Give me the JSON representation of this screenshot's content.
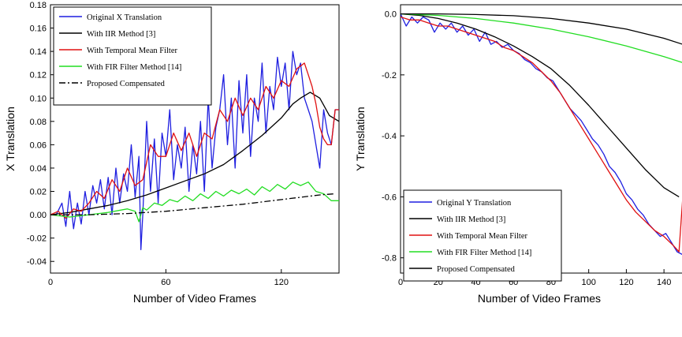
{
  "chart_data": [
    {
      "type": "line",
      "xlabel": "Number of Video Frames",
      "ylabel": "X  Translation",
      "xlim": [
        0,
        150
      ],
      "ylim": [
        -0.05,
        0.18
      ],
      "xticks": [
        0,
        60,
        120
      ],
      "yticks": [
        -0.04,
        -0.02,
        0.0,
        0.02,
        0.04,
        0.06,
        0.08,
        0.1,
        0.12,
        0.14,
        0.16,
        0.18
      ],
      "ytick_labels": [
        "-0.04",
        "-0.02",
        "0.00",
        "0.02",
        "0.04",
        "0.06",
        "0.08",
        "0.10",
        "0.12",
        "0.14",
        "0.16",
        "0.18"
      ],
      "legend_position": "top-left",
      "series": [
        {
          "name": "Original X Translation",
          "color": "#1f1fe0",
          "dash": "",
          "x": [
            0,
            3,
            6,
            8,
            10,
            12,
            14,
            16,
            18,
            20,
            22,
            24,
            26,
            28,
            30,
            32,
            34,
            36,
            38,
            40,
            42,
            44,
            46,
            47,
            48,
            50,
            52,
            54,
            56,
            58,
            60,
            62,
            64,
            66,
            68,
            70,
            72,
            74,
            76,
            78,
            80,
            82,
            84,
            86,
            88,
            90,
            92,
            94,
            96,
            98,
            100,
            102,
            104,
            106,
            108,
            110,
            112,
            114,
            116,
            118,
            120,
            122,
            124,
            126,
            128,
            130,
            132,
            134,
            136,
            138,
            140,
            142,
            144,
            146,
            148,
            150
          ],
          "y": [
            0.0,
            0.0,
            0.01,
            -0.01,
            0.02,
            -0.012,
            0.01,
            -0.008,
            0.02,
            0.0,
            0.025,
            0.01,
            0.03,
            0.005,
            0.032,
            0.0,
            0.04,
            0.01,
            0.035,
            0.02,
            0.06,
            0.015,
            0.05,
            -0.03,
            0.0,
            0.08,
            0.02,
            0.065,
            0.01,
            0.07,
            0.05,
            0.09,
            0.03,
            0.06,
            0.04,
            0.075,
            0.02,
            0.06,
            0.035,
            0.08,
            0.02,
            0.1,
            0.04,
            0.075,
            0.09,
            0.12,
            0.06,
            0.1,
            0.04,
            0.115,
            0.07,
            0.12,
            0.05,
            0.1,
            0.08,
            0.13,
            0.07,
            0.11,
            0.09,
            0.135,
            0.11,
            0.13,
            0.09,
            0.14,
            0.12,
            0.13,
            0.1,
            0.09,
            0.08,
            0.06,
            0.04,
            0.09,
            0.07,
            0.06,
            0.09,
            0.09
          ]
        },
        {
          "name": "With  IIR Method [3]",
          "color": "#000000",
          "dash": "",
          "x": [
            0,
            10,
            20,
            30,
            40,
            50,
            60,
            70,
            80,
            90,
            100,
            110,
            120,
            126,
            130,
            135,
            140,
            145,
            150
          ],
          "y": [
            0.0,
            0.002,
            0.005,
            0.008,
            0.012,
            0.017,
            0.023,
            0.029,
            0.035,
            0.043,
            0.055,
            0.068,
            0.083,
            0.095,
            0.1,
            0.105,
            0.1,
            0.085,
            0.08
          ]
        },
        {
          "name": "With Temporal Mean Filter",
          "color": "#e01010",
          "dash": "",
          "x": [
            0,
            4,
            8,
            12,
            16,
            20,
            24,
            28,
            32,
            36,
            40,
            44,
            48,
            52,
            56,
            60,
            64,
            68,
            72,
            76,
            80,
            84,
            88,
            92,
            96,
            100,
            104,
            108,
            112,
            116,
            120,
            124,
            128,
            132,
            134,
            136,
            138,
            140,
            142,
            144,
            146,
            148,
            150
          ],
          "y": [
            0.0,
            0.003,
            -0.003,
            0.005,
            0.003,
            0.01,
            0.02,
            0.014,
            0.03,
            0.02,
            0.04,
            0.025,
            0.03,
            0.06,
            0.05,
            0.05,
            0.07,
            0.055,
            0.07,
            0.05,
            0.07,
            0.065,
            0.09,
            0.08,
            0.1,
            0.085,
            0.1,
            0.09,
            0.11,
            0.1,
            0.115,
            0.11,
            0.125,
            0.13,
            0.12,
            0.11,
            0.095,
            0.075,
            0.065,
            0.06,
            0.06,
            0.09,
            0.09
          ]
        },
        {
          "name": "With FIR Filter Method [14]",
          "color": "#22dd22",
          "dash": "",
          "x": [
            0,
            10,
            20,
            30,
            40,
            44,
            46,
            48,
            50,
            54,
            58,
            62,
            66,
            70,
            74,
            78,
            82,
            86,
            90,
            94,
            98,
            102,
            106,
            110,
            114,
            118,
            122,
            126,
            130,
            134,
            138,
            142,
            146,
            150
          ],
          "y": [
            0.0,
            -0.002,
            0.0,
            0.002,
            0.005,
            0.003,
            -0.006,
            0.006,
            0.004,
            0.01,
            0.008,
            0.013,
            0.011,
            0.016,
            0.012,
            0.018,
            0.014,
            0.02,
            0.016,
            0.021,
            0.018,
            0.022,
            0.017,
            0.024,
            0.02,
            0.026,
            0.022,
            0.028,
            0.025,
            0.028,
            0.02,
            0.018,
            0.012,
            0.012
          ]
        },
        {
          "name": "Proposed Compensated",
          "color": "#000000",
          "dash": "8,3,2,3",
          "x": [
            0,
            20,
            40,
            60,
            80,
            100,
            120,
            140,
            148
          ],
          "y": [
            0.0,
            0.0,
            0.001,
            0.003,
            0.006,
            0.009,
            0.013,
            0.017,
            0.018
          ]
        }
      ]
    },
    {
      "type": "line",
      "xlabel": "Number of Video Frames",
      "ylabel": "Y Translation",
      "xlim": [
        0,
        150
      ],
      "ylim": [
        -0.85,
        0.03
      ],
      "xticks": [
        0,
        20,
        40,
        60,
        80,
        100,
        120,
        140
      ],
      "yticks": [
        0.0,
        -0.2,
        -0.4,
        -0.6,
        -0.8
      ],
      "ytick_labels": [
        "0.0",
        "-0.2",
        "-0.4",
        "-0.6",
        "-0.8"
      ],
      "legend_position": "bottom-left",
      "series": [
        {
          "name": "Original Y Translation",
          "color": "#1f1fe0",
          "dash": "",
          "x": [
            0,
            3,
            6,
            9,
            12,
            15,
            18,
            21,
            24,
            27,
            30,
            33,
            36,
            39,
            42,
            45,
            48,
            51,
            54,
            57,
            60,
            63,
            66,
            69,
            72,
            75,
            78,
            81,
            84,
            87,
            90,
            93,
            96,
            99,
            102,
            105,
            108,
            111,
            114,
            117,
            120,
            123,
            126,
            129,
            132,
            135,
            138,
            141,
            144,
            147,
            150
          ],
          "y": [
            0.0,
            -0.04,
            -0.01,
            -0.03,
            -0.01,
            -0.02,
            -0.06,
            -0.03,
            -0.05,
            -0.03,
            -0.06,
            -0.04,
            -0.07,
            -0.05,
            -0.09,
            -0.06,
            -0.1,
            -0.09,
            -0.11,
            -0.1,
            -0.12,
            -0.13,
            -0.15,
            -0.16,
            -0.18,
            -0.19,
            -0.21,
            -0.22,
            -0.25,
            -0.28,
            -0.31,
            -0.33,
            -0.35,
            -0.38,
            -0.41,
            -0.43,
            -0.46,
            -0.5,
            -0.52,
            -0.55,
            -0.59,
            -0.61,
            -0.64,
            -0.66,
            -0.69,
            -0.71,
            -0.73,
            -0.72,
            -0.75,
            -0.78,
            -0.79
          ]
        },
        {
          "name": "With  IIR Method [3]",
          "color": "#000000",
          "dash": "",
          "x": [
            0,
            10,
            20,
            30,
            40,
            50,
            60,
            70,
            80,
            90,
            100,
            110,
            120,
            130,
            140,
            148
          ],
          "y": [
            0.0,
            -0.005,
            -0.015,
            -0.03,
            -0.05,
            -0.075,
            -0.105,
            -0.14,
            -0.18,
            -0.235,
            -0.3,
            -0.37,
            -0.44,
            -0.51,
            -0.57,
            -0.6
          ]
        },
        {
          "name": "With Temporal Mean Filter",
          "color": "#e01010",
          "dash": "",
          "x": [
            0,
            5,
            10,
            15,
            20,
            25,
            30,
            35,
            40,
            45,
            50,
            55,
            60,
            65,
            70,
            75,
            80,
            85,
            90,
            95,
            100,
            105,
            110,
            115,
            120,
            125,
            130,
            135,
            140,
            145,
            148,
            150
          ],
          "y": [
            -0.01,
            -0.02,
            -0.02,
            -0.03,
            -0.04,
            -0.04,
            -0.05,
            -0.06,
            -0.07,
            -0.08,
            -0.09,
            -0.11,
            -0.12,
            -0.14,
            -0.16,
            -0.19,
            -0.22,
            -0.26,
            -0.31,
            -0.36,
            -0.41,
            -0.46,
            -0.51,
            -0.56,
            -0.61,
            -0.65,
            -0.68,
            -0.71,
            -0.73,
            -0.76,
            -0.78,
            -0.6
          ]
        },
        {
          "name": "With FIR Filter Method [14]",
          "color": "#22dd22",
          "dash": "",
          "x": [
            0,
            20,
            40,
            60,
            80,
            100,
            120,
            140,
            150
          ],
          "y": [
            0.0,
            -0.005,
            -0.015,
            -0.03,
            -0.05,
            -0.075,
            -0.105,
            -0.14,
            -0.16
          ]
        },
        {
          "name": "Proposed Compensated",
          "color": "#000000",
          "dash": "",
          "x": [
            0,
            20,
            40,
            60,
            80,
            100,
            120,
            140,
            150
          ],
          "y": [
            0.0,
            0.0,
            -0.002,
            -0.006,
            -0.015,
            -0.03,
            -0.05,
            -0.08,
            -0.1
          ]
        }
      ]
    }
  ]
}
